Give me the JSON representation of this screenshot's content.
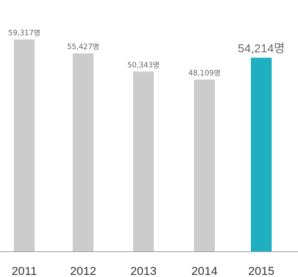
{
  "chart_data": {
    "type": "bar",
    "categories": [
      "2011",
      "2012",
      "2013",
      "2014",
      "2015"
    ],
    "values": [
      59317,
      55427,
      50343,
      48109,
      54214
    ],
    "value_labels": [
      "59,317명",
      "55,427명",
      "50,343명",
      "48,109명",
      "54,214명"
    ],
    "highlight_index": 4,
    "ylim": [
      0,
      59317
    ],
    "grid": false,
    "colors": {
      "bar": "#cccccc",
      "highlight": "#1eafc1",
      "baseline": "#999999",
      "label": "#666666",
      "category": "#333333"
    }
  }
}
